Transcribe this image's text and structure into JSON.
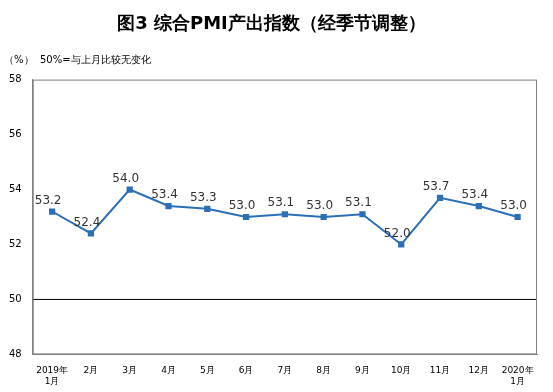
{
  "chart_data": {
    "type": "line",
    "title": "图3 综合PMI产出指数（经季节调整）",
    "y_unit": "（%）",
    "annotation": "50%=与上月比较无变化",
    "categories": [
      "2019年\n1月",
      "2月",
      "3月",
      "4月",
      "5月",
      "6月",
      "7月",
      "8月",
      "9月",
      "10月",
      "11月",
      "12月",
      "2020年\n1月"
    ],
    "values": [
      53.2,
      52.4,
      54.0,
      53.4,
      53.3,
      53.0,
      53.1,
      53.0,
      53.1,
      52.0,
      53.7,
      53.4,
      53.0
    ],
    "value_labels": [
      "53.2",
      "52.4",
      "54.0",
      "53.4",
      "53.3",
      "53.0",
      "53.1",
      "53.0",
      "53.1",
      "52.0",
      "53.7",
      "53.4",
      "53.0"
    ],
    "baseline": 50,
    "color": "#2a6fb7",
    "marker": "square",
    "data_labels": true,
    "grid": false,
    "ylim": [
      48,
      58
    ],
    "yticks": [
      48,
      50,
      52,
      54,
      56,
      58
    ]
  }
}
